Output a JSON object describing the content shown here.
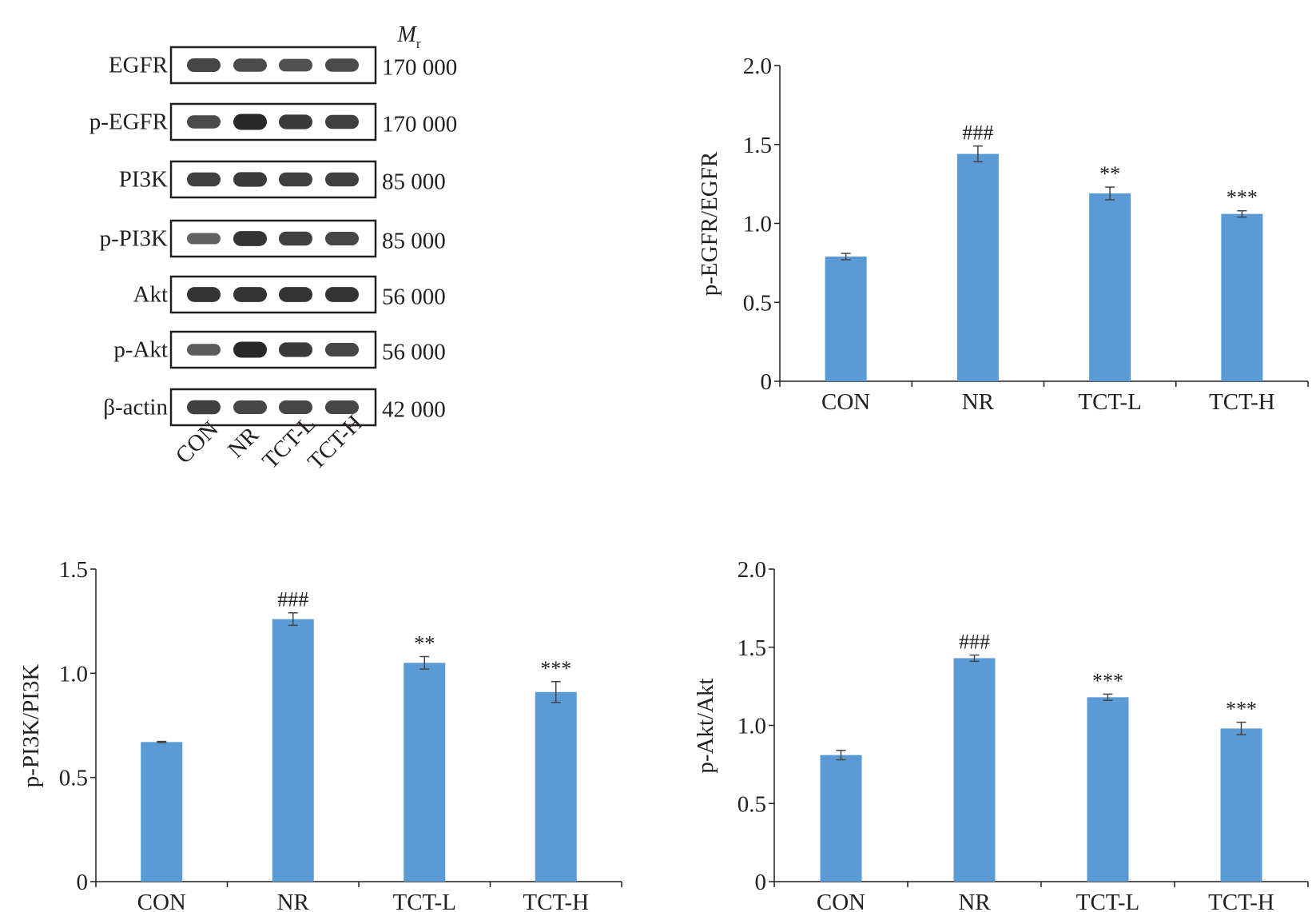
{
  "blot": {
    "mr_label_main": "M",
    "mr_label_sub": "r",
    "rows": [
      {
        "protein": "EGFR",
        "mr": "170 000",
        "intensity": [
          0.75,
          0.7,
          0.65,
          0.7
        ]
      },
      {
        "protein": "p-EGFR",
        "mr": "170 000",
        "intensity": [
          0.7,
          1.0,
          0.85,
          0.8
        ]
      },
      {
        "protein": "PI3K",
        "mr": "85 000",
        "intensity": [
          0.8,
          0.85,
          0.8,
          0.8
        ]
      },
      {
        "protein": "p-PI3K",
        "mr": "85 000",
        "intensity": [
          0.5,
          0.9,
          0.8,
          0.75
        ]
      },
      {
        "protein": "Akt",
        "mr": "56 000",
        "intensity": [
          0.9,
          0.9,
          0.9,
          0.9
        ]
      },
      {
        "protein": "p-Akt",
        "mr": "56 000",
        "intensity": [
          0.55,
          1.0,
          0.85,
          0.75
        ]
      },
      {
        "protein": "β-actin",
        "mr": "42 000",
        "intensity": [
          0.8,
          0.75,
          0.75,
          0.75
        ]
      }
    ],
    "lanes": [
      "CON",
      "NR",
      "TCT-L",
      "TCT-H"
    ]
  },
  "style": {
    "bar_color": "#5b9bd5",
    "axis_color": "#231f20",
    "band_color": "#1e1e1e"
  },
  "chart_data": [
    {
      "type": "bar",
      "categories": [
        "CON",
        "NR",
        "TCT-L",
        "TCT-H"
      ],
      "values": [
        0.79,
        1.44,
        1.19,
        1.06
      ],
      "errors": [
        0.02,
        0.05,
        0.04,
        0.02
      ],
      "annotations": [
        "",
        "###",
        "**",
        "***"
      ],
      "ylabel": "p-EGFR/EGFR",
      "ylim": [
        0,
        2.0
      ],
      "yticks": [
        0,
        0.5,
        1.0,
        1.5,
        2.0
      ],
      "ytick_labels": [
        "0",
        "0.5",
        "1.0",
        "1.5",
        "2.0"
      ]
    },
    {
      "type": "bar",
      "categories": [
        "CON",
        "NR",
        "TCT-L",
        "TCT-H"
      ],
      "values": [
        0.67,
        1.26,
        1.05,
        0.91
      ],
      "errors": [
        0.003,
        0.03,
        0.03,
        0.05
      ],
      "annotations": [
        "",
        "###",
        "**",
        "***"
      ],
      "ylabel": "p-PI3K/PI3K",
      "ylim": [
        0,
        1.5
      ],
      "yticks": [
        0,
        0.5,
        1.0,
        1.5
      ],
      "ytick_labels": [
        "0",
        "0.5",
        "1.0",
        "1.5"
      ]
    },
    {
      "type": "bar",
      "categories": [
        "CON",
        "NR",
        "TCT-L",
        "TCT-H"
      ],
      "values": [
        0.81,
        1.43,
        1.18,
        0.98
      ],
      "errors": [
        0.03,
        0.02,
        0.02,
        0.04
      ],
      "annotations": [
        "",
        "###",
        "***",
        "***"
      ],
      "ylabel": "p-Akt/Akt",
      "ylim": [
        0,
        2.0
      ],
      "yticks": [
        0,
        0.5,
        1.0,
        1.5,
        2.0
      ],
      "ytick_labels": [
        "0",
        "0.5",
        "1.0",
        "1.5",
        "2.0"
      ]
    }
  ]
}
